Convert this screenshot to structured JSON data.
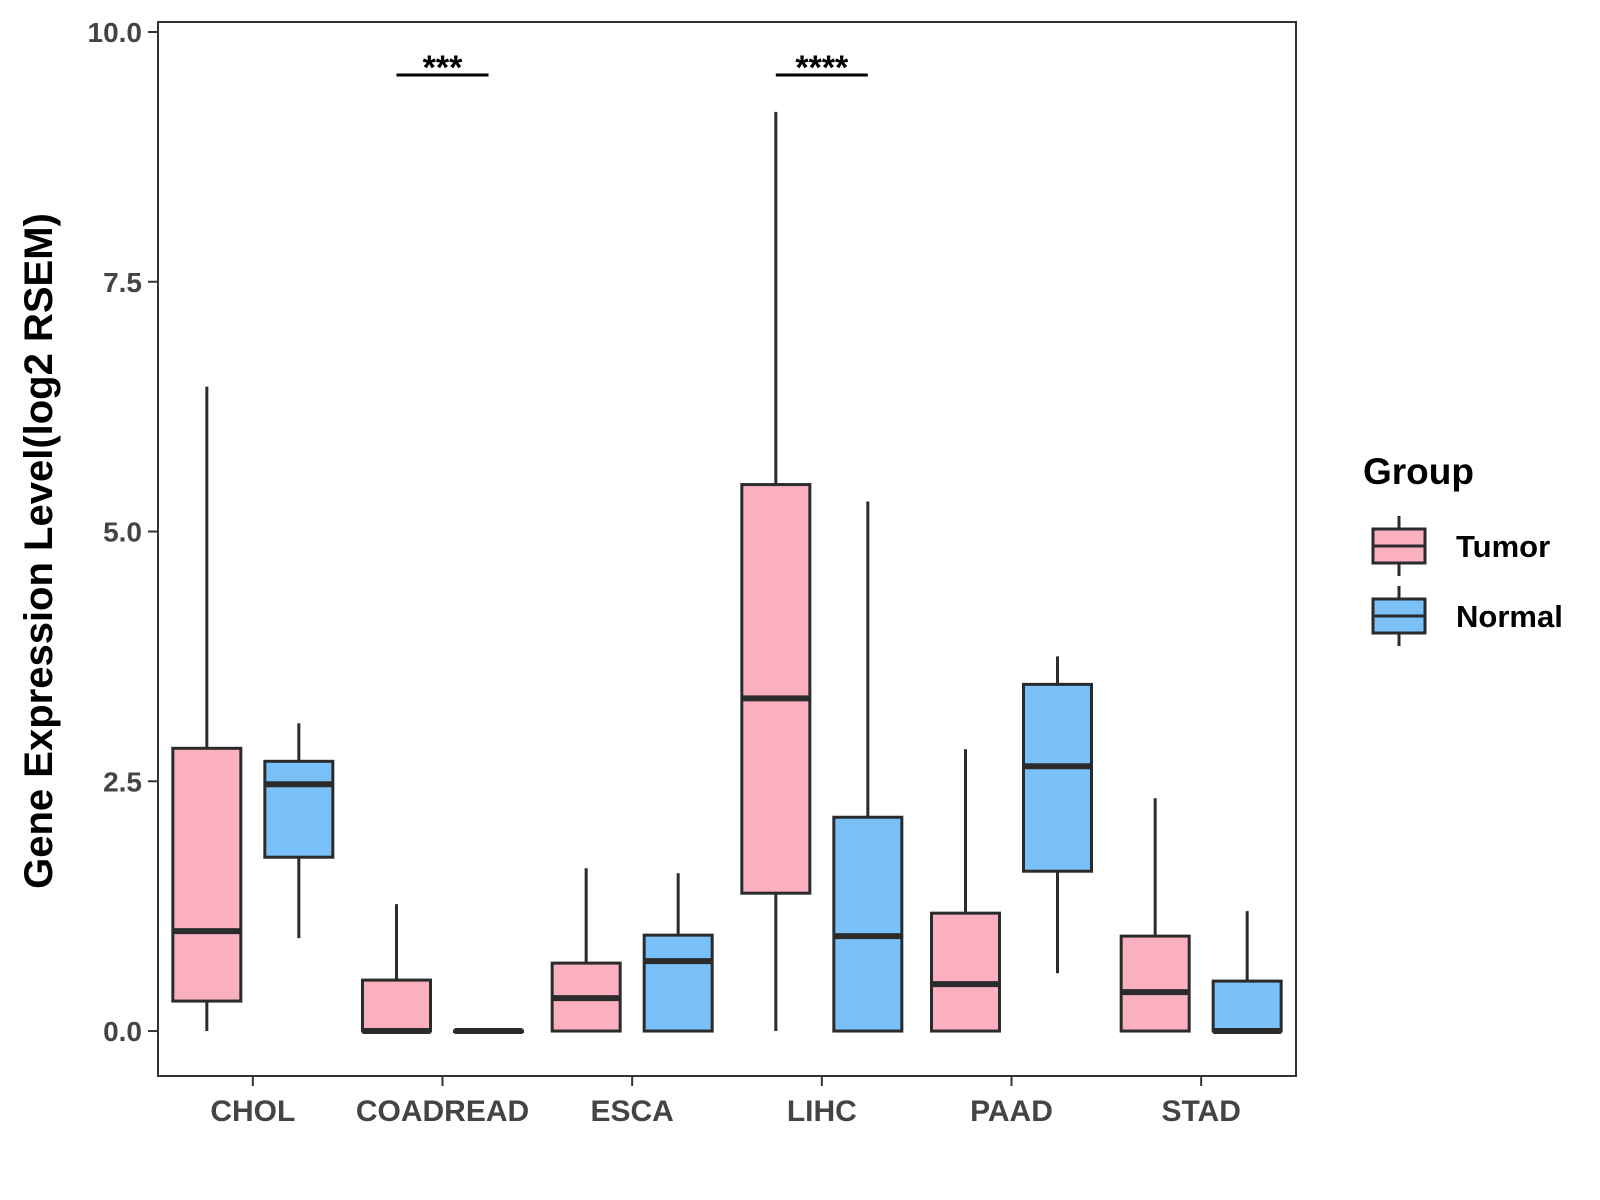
{
  "chart_data": {
    "type": "boxplot",
    "title": "",
    "xlabel": "",
    "ylabel": "Gene Expression Level(log2 RSEM)",
    "ylim": [
      -0.45,
      10.1
    ],
    "yticks": [
      0.0,
      2.5,
      5.0,
      7.5,
      10.0
    ],
    "ytick_labels": [
      "0.0",
      "2.5",
      "5.0",
      "7.5",
      "10.0"
    ],
    "categories": [
      "CHOL",
      "COADREAD",
      "ESCA",
      "LIHC",
      "PAAD",
      "STAD"
    ],
    "legend": {
      "title": "Group",
      "position": "right",
      "entries": [
        {
          "label": "Tumor",
          "color": "#fbb0c0"
        },
        {
          "label": "Normal",
          "color": "#79c1f8"
        }
      ]
    },
    "series": [
      {
        "name": "Tumor",
        "color": "#fbb0c0",
        "boxes": [
          {
            "whisker_low": 0.0,
            "q1": 0.3,
            "median": 1.0,
            "q3": 2.83,
            "whisker_high": 6.45
          },
          {
            "whisker_low": 0.0,
            "q1": 0.0,
            "median": 0.0,
            "q3": 0.51,
            "whisker_high": 1.27
          },
          {
            "whisker_low": 0.0,
            "q1": 0.0,
            "median": 0.33,
            "q3": 0.68,
            "whisker_high": 1.63
          },
          {
            "whisker_low": 0.0,
            "q1": 1.38,
            "median": 3.33,
            "q3": 5.47,
            "whisker_high": 9.2
          },
          {
            "whisker_low": 0.0,
            "q1": 0.0,
            "median": 0.47,
            "q3": 1.18,
            "whisker_high": 2.82
          },
          {
            "whisker_low": 0.0,
            "q1": 0.0,
            "median": 0.39,
            "q3": 0.95,
            "whisker_high": 2.33
          }
        ]
      },
      {
        "name": "Normal",
        "color": "#79c1f8",
        "boxes": [
          {
            "whisker_low": 0.93,
            "q1": 1.74,
            "median": 2.47,
            "q3": 2.7,
            "whisker_high": 3.08
          },
          {
            "whisker_low": 0.0,
            "q1": 0.0,
            "median": 0.0,
            "q3": 0.0,
            "whisker_high": 0.0
          },
          {
            "whisker_low": 0.0,
            "q1": 0.0,
            "median": 0.7,
            "q3": 0.96,
            "whisker_high": 1.58
          },
          {
            "whisker_low": 0.0,
            "q1": 0.0,
            "median": 0.95,
            "q3": 2.14,
            "whisker_high": 5.3
          },
          {
            "whisker_low": 0.58,
            "q1": 1.6,
            "median": 2.65,
            "q3": 3.47,
            "whisker_high": 3.75
          },
          {
            "whisker_low": 0.0,
            "q1": 0.0,
            "median": 0.0,
            "q3": 0.5,
            "whisker_high": 1.2
          }
        ]
      }
    ],
    "annotations": [
      {
        "category": "COADREAD",
        "text": "***"
      },
      {
        "category": "LIHC",
        "text": "****"
      }
    ]
  }
}
